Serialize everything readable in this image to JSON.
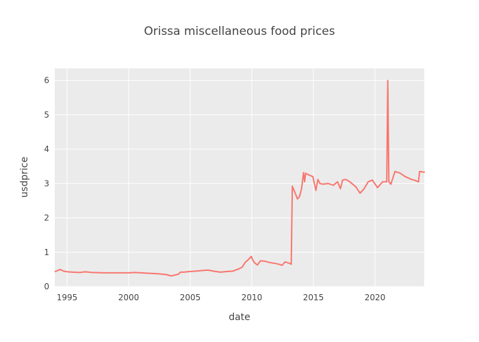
{
  "chart_data": {
    "type": "line",
    "title": "Orissa miscellaneous food prices",
    "xlabel": "date",
    "ylabel": "usdprice",
    "xlim": [
      "1994-01-01",
      "2024-01-01"
    ],
    "ylim": [
      0,
      6.35
    ],
    "x_ticks": [
      "1995",
      "2000",
      "2005",
      "2010",
      "2015",
      "2020"
    ],
    "y_ticks": [
      "0",
      "1",
      "2",
      "3",
      "4",
      "5",
      "6"
    ],
    "grid": true,
    "legend": "none",
    "colors": {
      "series": "#f8766d",
      "plot_bg": "#ebebeb",
      "grid": "#ffffff"
    },
    "series": [
      {
        "x": [
          "1994-01-15",
          "1994-06-15",
          "1994-09-15",
          "1995-01-15",
          "1995-06-15",
          "1996-01-15",
          "1996-06-15",
          "1997-01-15",
          "1998-01-15",
          "1999-01-15",
          "2000-01-15",
          "2000-06-15",
          "2001-01-15",
          "2001-06-15",
          "2002-01-15",
          "2002-06-15",
          "2003-01-15",
          "2003-06-15",
          "2004-01-15",
          "2004-03-15",
          "2004-06-15",
          "2005-01-15",
          "2005-06-15",
          "2006-01-15",
          "2006-06-15",
          "2007-01-15",
          "2007-06-15",
          "2008-01-15",
          "2008-06-15",
          "2008-12-15",
          "2009-03-15",
          "2009-06-15",
          "2009-09-15",
          "2009-12-15",
          "2010-01-15",
          "2010-03-15",
          "2010-06-15",
          "2010-09-15",
          "2011-01-15",
          "2011-06-15",
          "2011-12-15",
          "2012-03-15",
          "2012-06-15",
          "2012-09-15",
          "2013-01-15",
          "2013-03-15",
          "2013-04-15",
          "2013-06-15",
          "2013-09-15",
          "2013-11-15",
          "2014-01-15",
          "2014-03-15",
          "2014-04-15",
          "2014-05-15",
          "2014-08-15",
          "2014-12-15",
          "2015-03-15",
          "2015-05-15",
          "2015-07-15",
          "2015-10-15",
          "2016-03-15",
          "2016-08-15",
          "2016-12-15",
          "2017-03-15",
          "2017-05-15",
          "2017-08-15",
          "2017-12-15",
          "2018-06-15",
          "2018-10-15",
          "2019-02-15",
          "2019-06-15",
          "2019-10-15",
          "2020-03-15",
          "2020-08-15",
          "2020-10-15",
          "2020-12-15",
          "2021-01-15",
          "2021-02-15",
          "2021-04-15",
          "2021-08-15",
          "2022-01-15",
          "2022-06-15",
          "2022-12-15",
          "2023-03-15",
          "2023-07-15",
          "2023-08-15",
          "2023-12-31"
        ],
        "values": [
          0.44,
          0.5,
          0.45,
          0.43,
          0.42,
          0.41,
          0.43,
          0.41,
          0.4,
          0.4,
          0.4,
          0.41,
          0.4,
          0.39,
          0.38,
          0.37,
          0.35,
          0.31,
          0.36,
          0.42,
          0.42,
          0.44,
          0.45,
          0.47,
          0.48,
          0.44,
          0.42,
          0.44,
          0.45,
          0.52,
          0.56,
          0.7,
          0.78,
          0.88,
          0.8,
          0.7,
          0.63,
          0.75,
          0.74,
          0.7,
          0.67,
          0.65,
          0.62,
          0.72,
          0.68,
          0.65,
          2.92,
          2.78,
          2.55,
          2.62,
          2.85,
          3.32,
          3.05,
          3.3,
          3.25,
          3.2,
          2.8,
          3.12,
          3.0,
          2.98,
          3.0,
          2.95,
          3.05,
          2.85,
          3.1,
          3.12,
          3.05,
          2.9,
          2.72,
          2.85,
          3.05,
          3.1,
          2.88,
          3.05,
          3.05,
          3.05,
          6.0,
          3.05,
          2.98,
          3.35,
          3.3,
          3.2,
          3.12,
          3.1,
          3.05,
          3.35,
          3.33
        ]
      }
    ]
  }
}
